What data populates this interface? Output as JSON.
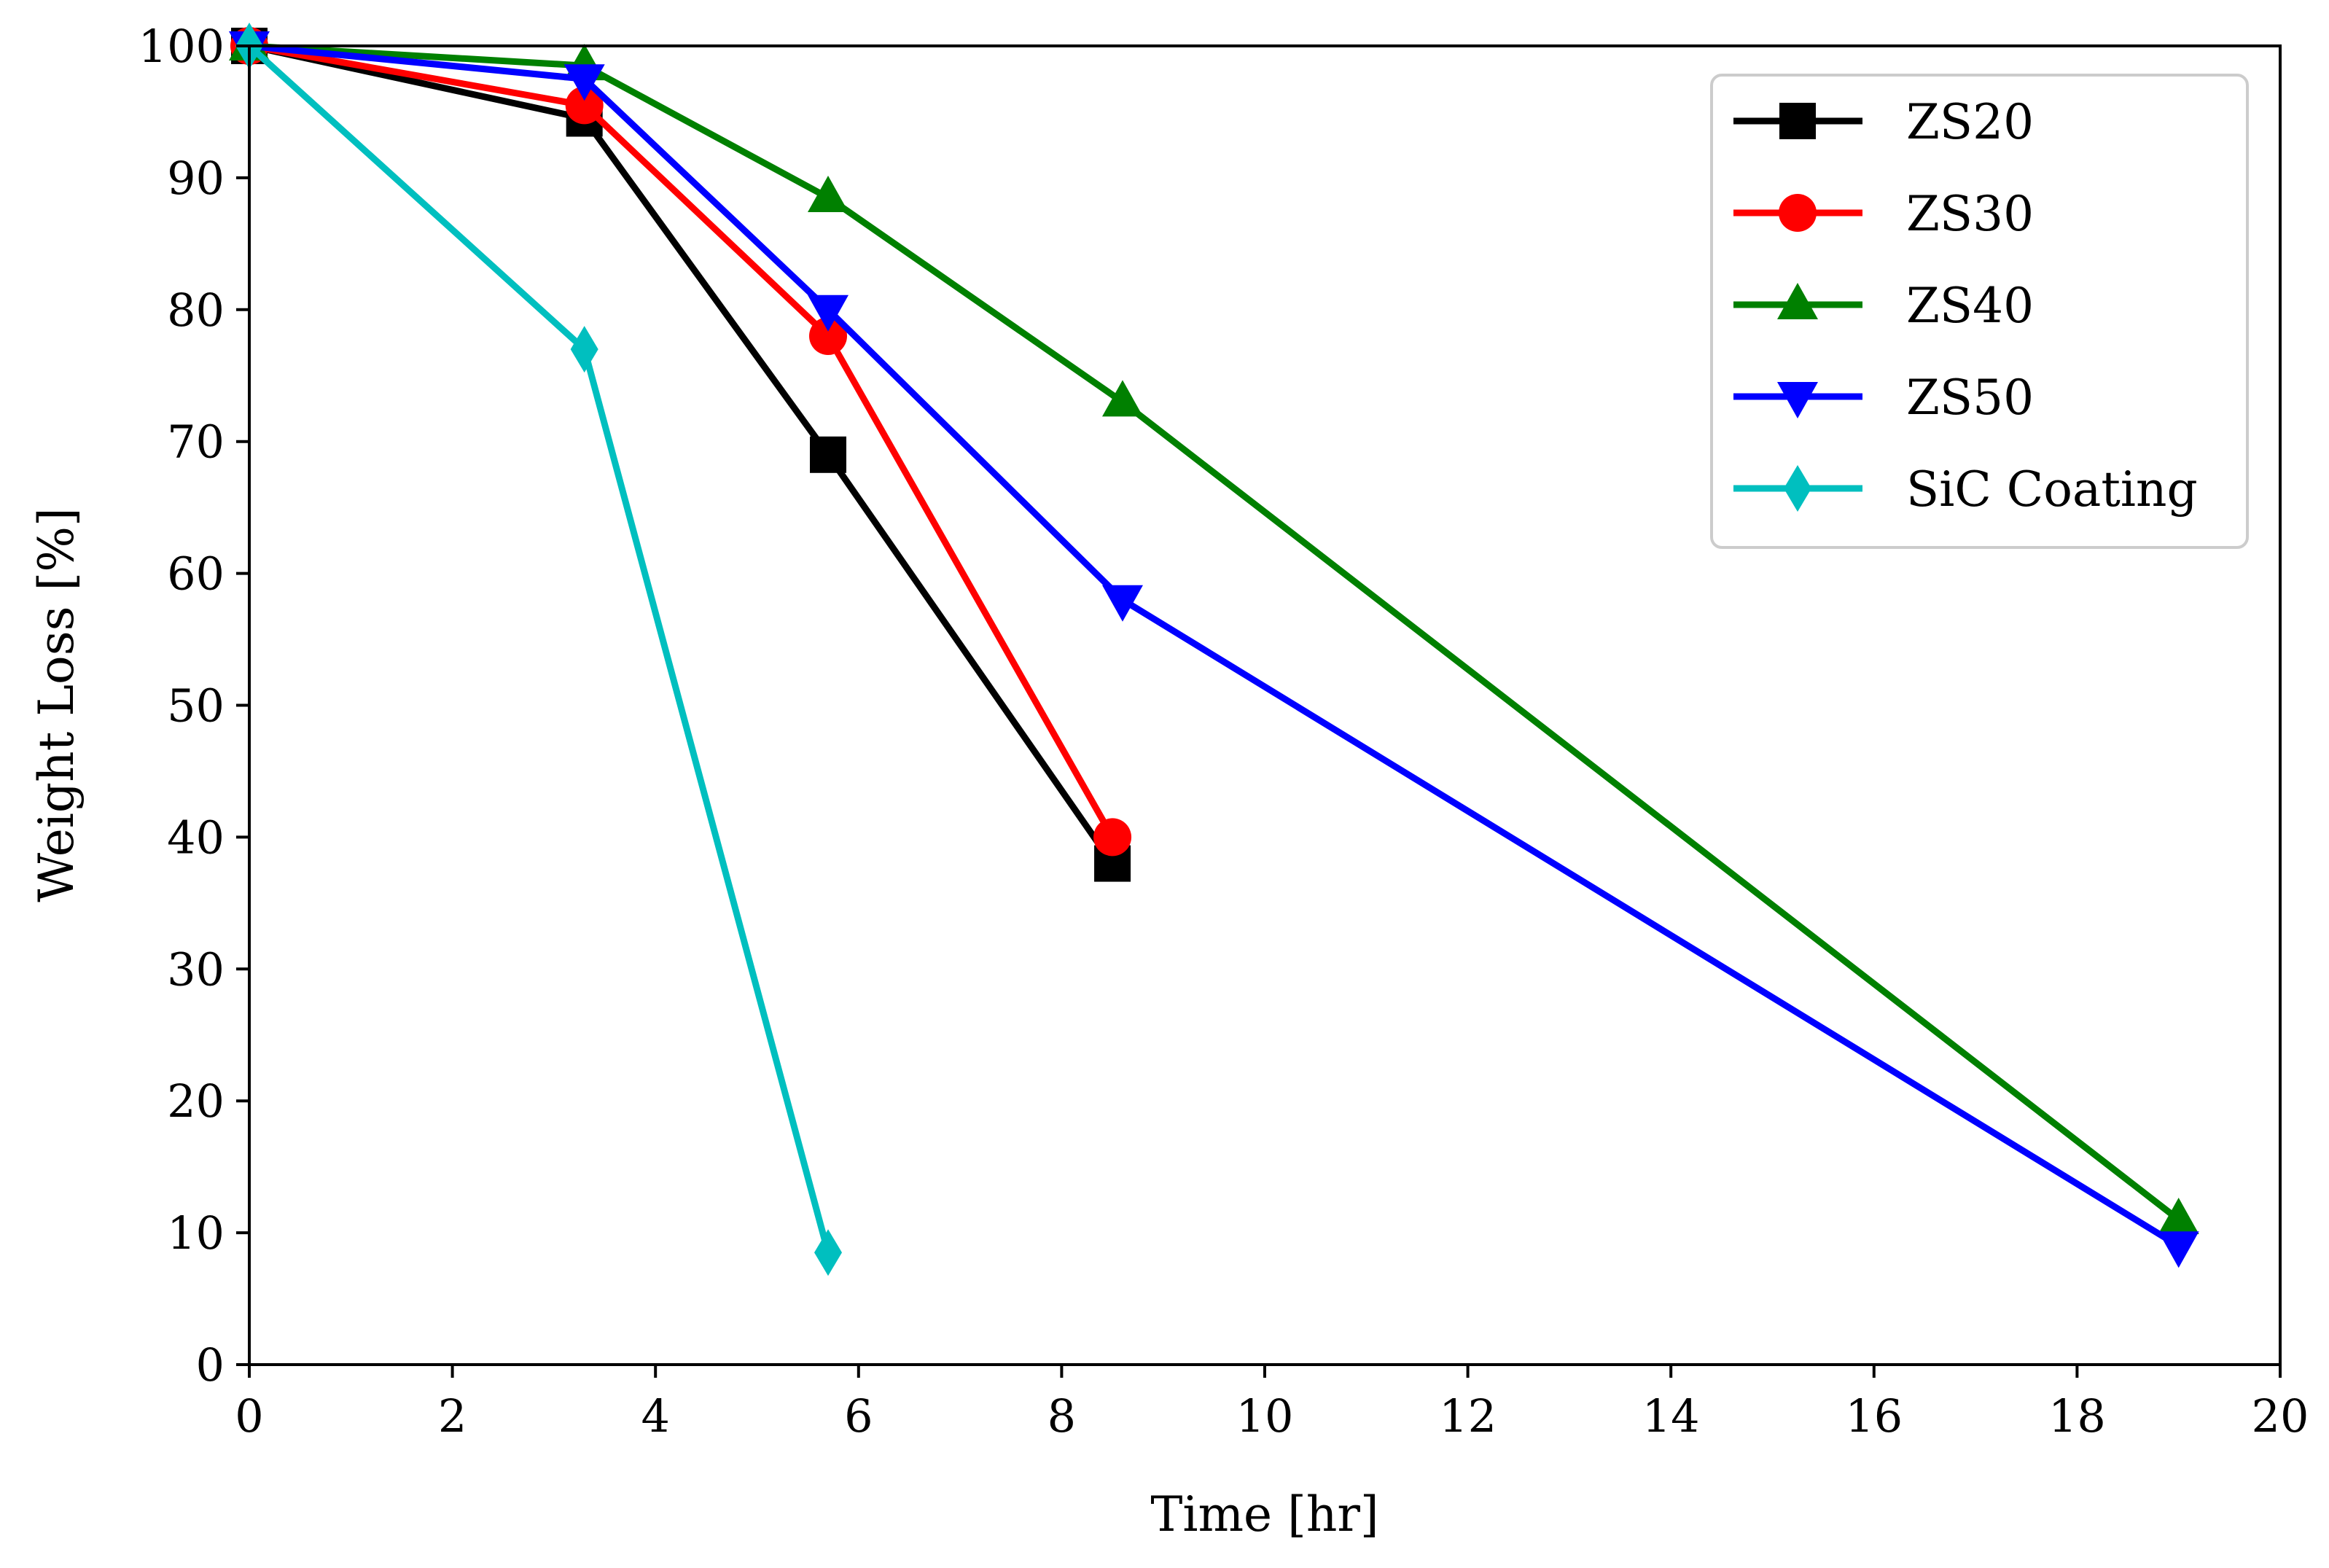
{
  "chart_data": {
    "type": "line",
    "title": "",
    "xlabel": "Time [hr]",
    "ylabel": "Weight Loss [%]",
    "xlim": [
      0,
      20
    ],
    "ylim": [
      0,
      100
    ],
    "xticks": [
      0,
      2,
      4,
      6,
      8,
      10,
      12,
      14,
      16,
      18,
      20
    ],
    "yticks": [
      0,
      10,
      20,
      30,
      40,
      50,
      60,
      70,
      80,
      90,
      100
    ],
    "grid": false,
    "legend_position": "top-right",
    "series": [
      {
        "name": "ZS20",
        "color": "#000000",
        "marker": "square",
        "x": [
          0,
          3.3,
          5.7,
          8.5
        ],
        "y": [
          100,
          94.5,
          69,
          38
        ]
      },
      {
        "name": "ZS30",
        "color": "#ff0000",
        "marker": "circle",
        "x": [
          0,
          3.3,
          5.7,
          8.5
        ],
        "y": [
          100,
          95.5,
          78,
          40
        ]
      },
      {
        "name": "ZS40",
        "color": "#008000",
        "marker": "triangle-up",
        "x": [
          0,
          3.3,
          5.7,
          8.6,
          19
        ],
        "y": [
          100,
          98.5,
          88.5,
          73,
          11
        ]
      },
      {
        "name": "ZS50",
        "color": "#0000ff",
        "marker": "triangle-down",
        "x": [
          0,
          3.3,
          5.7,
          8.6,
          19
        ],
        "y": [
          100,
          97.5,
          80,
          58,
          9
        ]
      },
      {
        "name": "SiC Coating",
        "color": "#00bfbf",
        "marker": "diamond",
        "x": [
          0,
          3.3,
          5.7
        ],
        "y": [
          100,
          77,
          8.5
        ]
      }
    ]
  }
}
